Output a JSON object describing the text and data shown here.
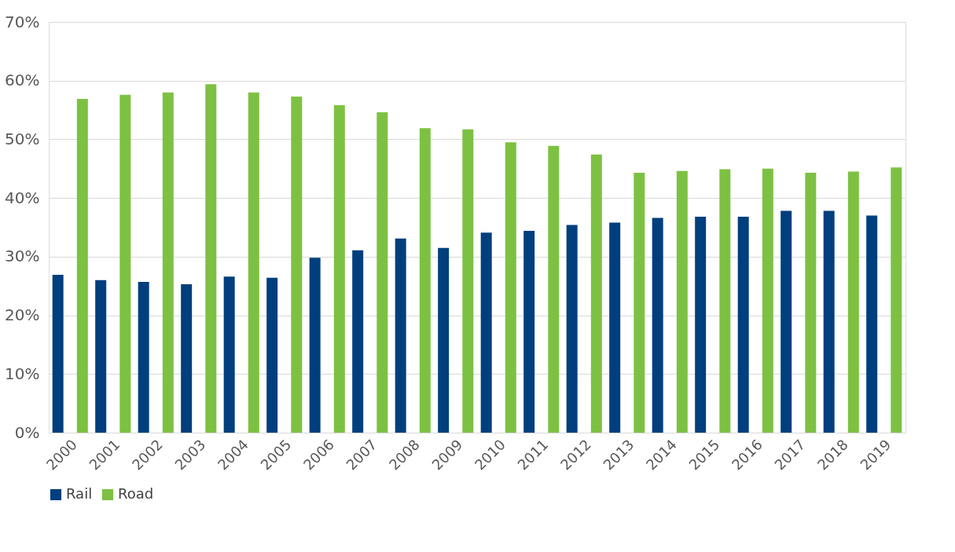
{
  "chart_data": {
    "type": "bar",
    "categories": [
      "2000",
      "2001",
      "2002",
      "2003",
      "2004",
      "2005",
      "2006",
      "2007",
      "2008",
      "2009",
      "2010",
      "2011",
      "2012",
      "2013",
      "2014",
      "2015",
      "2016",
      "2017",
      "2018",
      "2019"
    ],
    "series": [
      {
        "name": "Rail",
        "color": "#003f7d",
        "values": [
          26.9,
          26.0,
          25.7,
          25.3,
          26.6,
          26.4,
          29.8,
          31.1,
          33.1,
          31.5,
          34.1,
          34.4,
          35.4,
          35.8,
          36.6,
          36.8,
          36.8,
          37.8,
          37.8,
          37.0
        ]
      },
      {
        "name": "Road",
        "color": "#7dc142",
        "values": [
          56.9,
          57.6,
          58.0,
          59.4,
          58.0,
          57.3,
          55.8,
          54.6,
          51.9,
          51.7,
          49.5,
          48.9,
          47.4,
          44.3,
          44.6,
          44.9,
          45.0,
          44.3,
          44.5,
          45.2
        ]
      }
    ],
    "ylim": [
      0,
      70
    ],
    "yticks": [
      {
        "value": 0,
        "label": "0%"
      },
      {
        "value": 10,
        "label": "10%"
      },
      {
        "value": 20,
        "label": "20%"
      },
      {
        "value": 30,
        "label": "30%"
      },
      {
        "value": 40,
        "label": "40%"
      },
      {
        "value": 50,
        "label": "50%"
      },
      {
        "value": 60,
        "label": "60%"
      },
      {
        "value": 70,
        "label": "70%"
      }
    ],
    "grid": "y",
    "legend": "bottom"
  }
}
